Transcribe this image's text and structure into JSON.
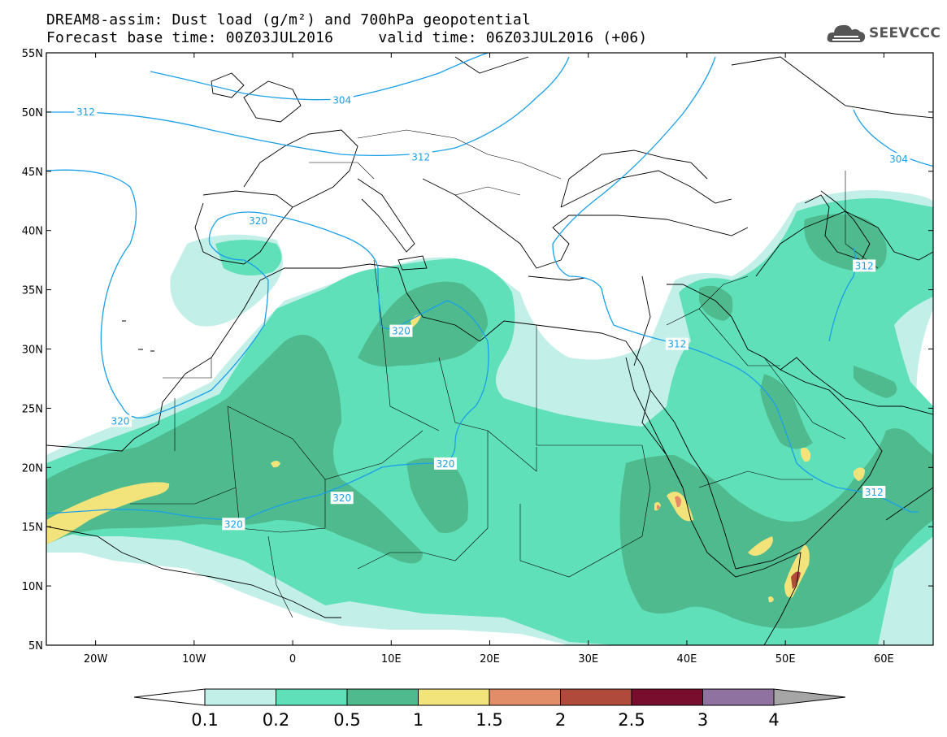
{
  "header": {
    "title_line1": "DREAM8-assim: Dust load (g/m²) and 700hPa geopotential",
    "title_line2": "Forecast base time: 00Z03JUL2016     valid time: 06Z03JUL2016 (+06)",
    "logo_text": "SEEVCCC"
  },
  "map": {
    "extent": {
      "lon": [
        -25,
        65
      ],
      "lat": [
        5,
        55
      ]
    },
    "lat_ticks": [
      {
        "value": 55,
        "label": "55N"
      },
      {
        "value": 50,
        "label": "50N"
      },
      {
        "value": 45,
        "label": "45N"
      },
      {
        "value": 40,
        "label": "40N"
      },
      {
        "value": 35,
        "label": "35N"
      },
      {
        "value": 30,
        "label": "30N"
      },
      {
        "value": 25,
        "label": "25N"
      },
      {
        "value": 20,
        "label": "20N"
      },
      {
        "value": 15,
        "label": "15N"
      },
      {
        "value": 10,
        "label": "10N"
      },
      {
        "value": 5,
        "label": "5N"
      }
    ],
    "lon_ticks": [
      {
        "value": -20,
        "label": "20W"
      },
      {
        "value": -10,
        "label": "10W"
      },
      {
        "value": 0,
        "label": "0"
      },
      {
        "value": 10,
        "label": "10E"
      },
      {
        "value": 20,
        "label": "20E"
      },
      {
        "value": 30,
        "label": "30E"
      },
      {
        "value": 40,
        "label": "40E"
      },
      {
        "value": 50,
        "label": "50E"
      },
      {
        "value": 60,
        "label": "60E"
      }
    ],
    "contour_labels": [
      {
        "text": "312",
        "lon": -21,
        "lat": 50
      },
      {
        "text": "304",
        "lon": 5,
        "lat": 51
      },
      {
        "text": "312",
        "lon": 13,
        "lat": 46.2
      },
      {
        "text": "304",
        "lon": 61.5,
        "lat": 46
      },
      {
        "text": "320",
        "lon": -3.5,
        "lat": 40.8
      },
      {
        "text": "312",
        "lon": 58,
        "lat": 37
      },
      {
        "text": "320",
        "lon": 11,
        "lat": 31.5
      },
      {
        "text": "312",
        "lon": 39,
        "lat": 30.4
      },
      {
        "text": "320",
        "lon": -17.5,
        "lat": 23.9
      },
      {
        "text": "320",
        "lon": 15.5,
        "lat": 20.3
      },
      {
        "text": "320",
        "lon": 5,
        "lat": 17.4
      },
      {
        "text": "320",
        "lon": -6,
        "lat": 15.2
      },
      {
        "text": "312",
        "lon": 59,
        "lat": 17.9
      }
    ]
  },
  "colorbar": {
    "labels": [
      "0.1",
      "0.2",
      "0.5",
      "1",
      "1.5",
      "2",
      "2.5",
      "3",
      "4"
    ],
    "colors": [
      "#c2efe8",
      "#5fe0b8",
      "#4fba8e",
      "#f3e37b",
      "#e38d68",
      "#b04b3c",
      "#780d2e",
      "#8f72a0"
    ],
    "under_color": "#ffffff",
    "over_color": "#a6a6a6"
  },
  "palette": {
    "contour": "#1aa0e8",
    "coast": "#000000"
  }
}
